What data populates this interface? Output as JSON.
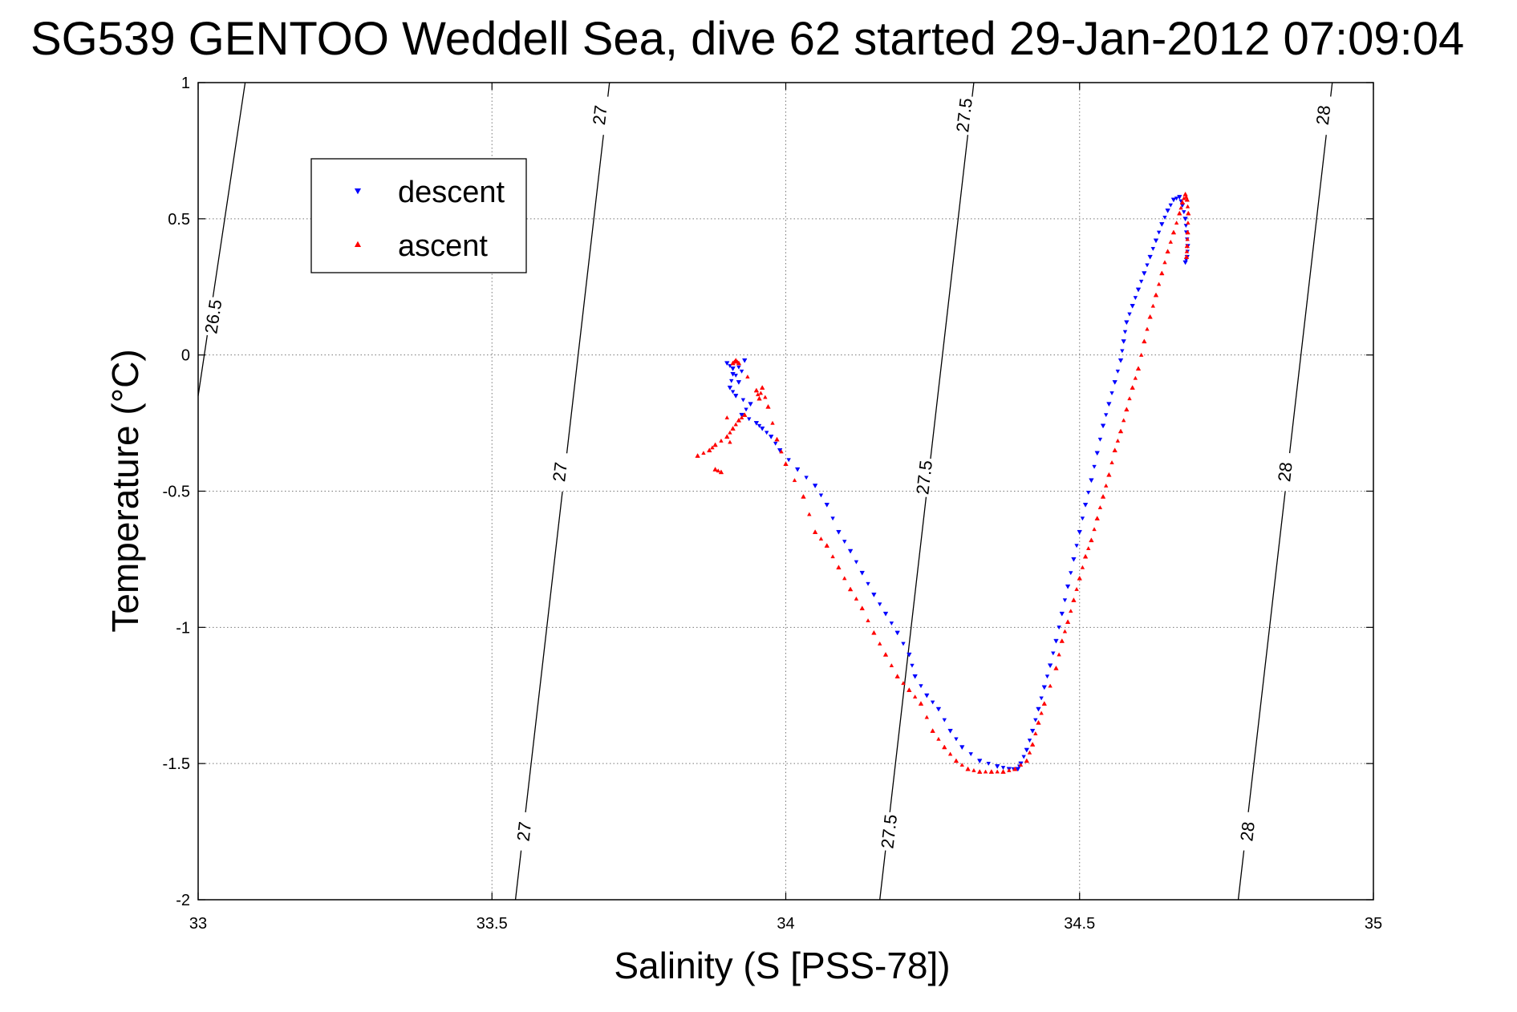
{
  "chart_data": {
    "type": "scatter",
    "title": "SG539 GENTOO Weddell Sea, dive 62 started 29-Jan-2012 07:09:04",
    "xlabel": "Salinity (S [PSS-78])",
    "ylabel": "Temperature (°C)",
    "xlim": [
      33,
      35
    ],
    "ylim": [
      -2,
      1
    ],
    "xticks": [
      33,
      33.5,
      34,
      34.5,
      35
    ],
    "xtick_labels": [
      "33",
      "33.5",
      "34",
      "34.5",
      "35"
    ],
    "yticks": [
      -2,
      -1.5,
      -1,
      -0.5,
      0,
      0.5,
      1
    ],
    "ytick_labels": [
      "-2",
      "-1.5",
      "-1",
      "-0.5",
      "0",
      "0.5",
      "1"
    ],
    "grid": true,
    "legend": {
      "position": "top-left",
      "entries": [
        "descent",
        "ascent"
      ]
    },
    "contours": [
      {
        "label": "26.5",
        "points": [
          [
            33.0,
            -0.15
          ],
          [
            33.08,
            1.0
          ]
        ],
        "label_positions": [
          [
            33.028,
            0.14
          ]
        ]
      },
      {
        "label": "27",
        "points": [
          [
            33.54,
            -2.0
          ],
          [
            33.7,
            1.0
          ]
        ],
        "label_positions": [
          [
            33.557,
            -1.75
          ],
          [
            33.618,
            -0.43
          ],
          [
            33.686,
            0.88
          ]
        ]
      },
      {
        "label": "27.5",
        "points": [
          [
            34.16,
            -2.0
          ],
          [
            34.32,
            1.0
          ]
        ],
        "label_positions": [
          [
            34.178,
            -1.75
          ],
          [
            34.238,
            -0.45
          ],
          [
            34.306,
            0.88
          ]
        ]
      },
      {
        "label": "28",
        "points": [
          [
            34.77,
            -2.0
          ],
          [
            34.93,
            1.0
          ]
        ],
        "label_positions": [
          [
            34.788,
            -1.75
          ],
          [
            34.852,
            -0.43
          ],
          [
            34.917,
            0.88
          ]
        ]
      }
    ],
    "series": [
      {
        "name": "descent",
        "color": "#0000ff",
        "marker": "triangle-down",
        "x": [
          33.9,
          33.91,
          33.92,
          33.93,
          33.91,
          33.905,
          33.915,
          33.94,
          33.925,
          33.95,
          33.96,
          33.975,
          33.99,
          34.02,
          34.05,
          34.07,
          34.09,
          34.11,
          34.13,
          34.15,
          34.17,
          34.19,
          34.21,
          34.22,
          34.24,
          34.26,
          34.28,
          34.3,
          34.33,
          34.36,
          34.38,
          34.395,
          34.4,
          34.41,
          34.42,
          34.43,
          34.44,
          34.45,
          34.46,
          34.47,
          34.48,
          34.49,
          34.5,
          34.51,
          34.52,
          34.53,
          34.54,
          34.55,
          34.56,
          34.57,
          34.575,
          34.58,
          34.59,
          34.6,
          34.61,
          34.62,
          34.63,
          34.64,
          34.65,
          34.66,
          34.67,
          34.675,
          34.68,
          34.682,
          34.684,
          34.683,
          34.68
        ],
        "y": [
          -0.03,
          -0.05,
          -0.1,
          -0.02,
          -0.07,
          -0.12,
          -0.15,
          -0.18,
          -0.22,
          -0.25,
          -0.27,
          -0.3,
          -0.35,
          -0.42,
          -0.48,
          -0.55,
          -0.65,
          -0.72,
          -0.8,
          -0.88,
          -0.95,
          -1.02,
          -1.1,
          -1.18,
          -1.25,
          -1.3,
          -1.38,
          -1.44,
          -1.49,
          -1.51,
          -1.52,
          -1.52,
          -1.5,
          -1.45,
          -1.38,
          -1.3,
          -1.22,
          -1.14,
          -1.05,
          -0.95,
          -0.85,
          -0.75,
          -0.65,
          -0.55,
          -0.46,
          -0.36,
          -0.26,
          -0.18,
          -0.1,
          -0.02,
          0.05,
          0.12,
          0.18,
          0.24,
          0.3,
          0.36,
          0.42,
          0.48,
          0.53,
          0.57,
          0.58,
          0.55,
          0.5,
          0.45,
          0.4,
          0.36,
          0.34
        ]
      },
      {
        "name": "ascent",
        "color": "#ff0000",
        "marker": "triangle-up",
        "x": [
          33.85,
          33.87,
          33.88,
          33.9,
          33.91,
          33.92,
          33.93,
          33.88,
          33.89,
          33.91,
          33.915,
          33.92,
          33.95,
          33.955,
          33.96,
          33.97,
          33.985,
          34.0,
          34.03,
          34.05,
          34.07,
          34.09,
          34.11,
          34.13,
          34.15,
          34.17,
          34.19,
          34.21,
          34.23,
          34.25,
          34.27,
          34.29,
          34.31,
          34.33,
          34.35,
          34.37,
          34.39,
          34.41,
          34.42,
          34.43,
          34.44,
          34.46,
          34.47,
          34.48,
          34.49,
          34.5,
          34.51,
          34.52,
          34.53,
          34.54,
          34.55,
          34.56,
          34.57,
          34.58,
          34.59,
          34.6,
          34.61,
          34.62,
          34.63,
          34.64,
          34.65,
          34.66,
          34.67,
          34.675,
          34.68,
          34.683,
          34.685,
          34.684,
          34.683,
          34.682
        ],
        "y": [
          -0.37,
          -0.35,
          -0.33,
          -0.3,
          -0.27,
          -0.24,
          -0.22,
          -0.42,
          -0.43,
          -0.03,
          -0.02,
          -0.03,
          -0.13,
          -0.16,
          -0.12,
          -0.19,
          -0.31,
          -0.4,
          -0.52,
          -0.65,
          -0.7,
          -0.78,
          -0.86,
          -0.93,
          -1.02,
          -1.1,
          -1.18,
          -1.23,
          -1.28,
          -1.38,
          -1.44,
          -1.49,
          -1.52,
          -1.53,
          -1.53,
          -1.53,
          -1.52,
          -1.49,
          -1.43,
          -1.35,
          -1.28,
          -1.15,
          -1.05,
          -0.98,
          -0.9,
          -0.82,
          -0.74,
          -0.68,
          -0.6,
          -0.52,
          -0.44,
          -0.35,
          -0.28,
          -0.2,
          -0.12,
          -0.05,
          0.05,
          0.14,
          0.22,
          0.3,
          0.38,
          0.45,
          0.52,
          0.56,
          0.59,
          0.57,
          0.52,
          0.45,
          0.4,
          0.36
        ]
      }
    ]
  }
}
